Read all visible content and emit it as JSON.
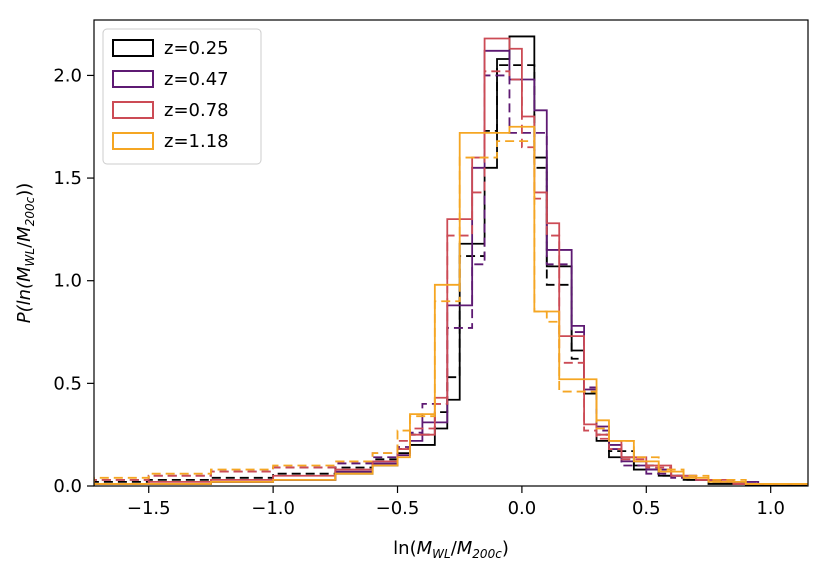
{
  "chart_data": {
    "type": "step-histogram",
    "title": "",
    "xlabel_parts": {
      "prefix": "ln(",
      "num": "M",
      "num_sub": "WL",
      "slash": "/",
      "den": "M",
      "den_sub": "200c",
      "suffix": ")"
    },
    "ylabel_parts": {
      "prefix": "P(ln(",
      "num": "M",
      "num_sub": "WL",
      "slash": "/",
      "den": "M",
      "den_sub": "200c",
      "suffix": "))"
    },
    "xlim": [
      -1.72,
      1.15
    ],
    "ylim": [
      0,
      2.27
    ],
    "xticks": [
      -1.5,
      -1.0,
      -0.5,
      0.0,
      0.5,
      1.0
    ],
    "xtick_labels": [
      "−1.5",
      "−1.0",
      "−0.5",
      "0.0",
      "0.5",
      "1.0"
    ],
    "yticks": [
      0.0,
      0.5,
      1.0,
      1.5,
      2.0
    ],
    "ytick_labels": [
      "0.0",
      "0.5",
      "1.0",
      "1.5",
      "2.0"
    ],
    "legend_position": "top-left",
    "series": [
      {
        "name": "z=0.25",
        "color": "#000000",
        "solid": {
          "edges": [
            -1.72,
            -1.5,
            -1.25,
            -1.0,
            -0.75,
            -0.6,
            -0.5,
            -0.45,
            -0.35,
            -0.3,
            -0.25,
            -0.15,
            -0.1,
            -0.05,
            0.05,
            0.1,
            0.2,
            0.25,
            0.3,
            0.35,
            0.45,
            0.55,
            0.65,
            0.75,
            0.9,
            1.15
          ],
          "heights": [
            0.01,
            0.01,
            0.02,
            0.03,
            0.06,
            0.1,
            0.16,
            0.2,
            0.28,
            0.42,
            1.18,
            1.55,
            2.08,
            2.19,
            1.6,
            1.07,
            0.66,
            0.45,
            0.22,
            0.14,
            0.08,
            0.05,
            0.03,
            0.01,
            0.005
          ]
        },
        "dashed": {
          "edges": [
            -1.72,
            -1.5,
            -1.25,
            -1.0,
            -0.75,
            -0.6,
            -0.5,
            -0.45,
            -0.35,
            -0.3,
            -0.25,
            -0.15,
            -0.1,
            -0.05,
            0.05,
            0.1,
            0.2,
            0.25,
            0.3,
            0.35,
            0.45,
            0.55,
            0.65,
            0.75,
            0.9,
            1.15
          ],
          "heights": [
            0.02,
            0.03,
            0.04,
            0.06,
            0.09,
            0.13,
            0.18,
            0.25,
            0.36,
            0.53,
            1.12,
            1.73,
            2.05,
            2.05,
            1.55,
            0.98,
            0.62,
            0.45,
            0.25,
            0.17,
            0.1,
            0.05,
            0.03,
            0.02,
            0.01
          ]
        }
      },
      {
        "name": "z=0.47",
        "color": "#5e1a73",
        "solid": {
          "edges": [
            -1.72,
            -1.5,
            -1.25,
            -1.0,
            -0.75,
            -0.6,
            -0.5,
            -0.45,
            -0.4,
            -0.3,
            -0.2,
            -0.15,
            -0.05,
            0.05,
            0.1,
            0.2,
            0.25,
            0.3,
            0.35,
            0.4,
            0.5,
            0.6,
            0.7,
            0.8,
            0.95,
            1.15
          ],
          "heights": [
            0.01,
            0.01,
            0.02,
            0.03,
            0.07,
            0.11,
            0.15,
            0.22,
            0.31,
            0.88,
            1.55,
            2.12,
            1.98,
            1.83,
            1.15,
            0.78,
            0.47,
            0.29,
            0.2,
            0.12,
            0.08,
            0.05,
            0.03,
            0.02,
            0.01
          ]
        },
        "dashed": {
          "edges": [
            -1.72,
            -1.5,
            -1.25,
            -1.0,
            -0.75,
            -0.6,
            -0.5,
            -0.45,
            -0.4,
            -0.3,
            -0.2,
            -0.15,
            -0.05,
            0.05,
            0.1,
            0.2,
            0.25,
            0.3,
            0.35,
            0.4,
            0.5,
            0.6,
            0.7,
            0.8,
            0.95,
            1.15
          ],
          "heights": [
            0.03,
            0.05,
            0.07,
            0.09,
            0.11,
            0.14,
            0.19,
            0.26,
            0.4,
            0.77,
            1.08,
            2.0,
            1.72,
            1.72,
            1.08,
            0.75,
            0.48,
            0.27,
            0.18,
            0.1,
            0.06,
            0.04,
            0.03,
            0.02,
            0.01
          ]
        }
      },
      {
        "name": "z=0.78",
        "color": "#cc4b55",
        "solid": {
          "edges": [
            -1.72,
            -1.5,
            -1.25,
            -1.0,
            -0.75,
            -0.6,
            -0.5,
            -0.45,
            -0.35,
            -0.3,
            -0.2,
            -0.15,
            -0.05,
            0.0,
            0.05,
            0.1,
            0.15,
            0.25,
            0.3,
            0.35,
            0.4,
            0.5,
            0.6,
            0.7,
            0.85,
            1.15
          ],
          "heights": [
            0.01,
            0.02,
            0.03,
            0.05,
            0.08,
            0.12,
            0.18,
            0.25,
            0.43,
            1.3,
            1.6,
            2.18,
            2.13,
            1.8,
            1.43,
            1.28,
            0.73,
            0.3,
            0.25,
            0.22,
            0.14,
            0.1,
            0.05,
            0.03,
            0.01
          ]
        },
        "dashed": {
          "edges": [
            -1.72,
            -1.5,
            -1.25,
            -1.0,
            -0.75,
            -0.6,
            -0.5,
            -0.45,
            -0.35,
            -0.3,
            -0.2,
            -0.15,
            -0.05,
            0.0,
            0.05,
            0.1,
            0.15,
            0.25,
            0.3,
            0.35,
            0.4,
            0.5,
            0.6,
            0.7,
            0.85,
            1.15
          ],
          "heights": [
            0.03,
            0.05,
            0.07,
            0.09,
            0.12,
            0.16,
            0.22,
            0.28,
            0.4,
            1.22,
            1.43,
            2.02,
            1.98,
            1.65,
            1.4,
            1.22,
            0.6,
            0.27,
            0.23,
            0.18,
            0.13,
            0.09,
            0.05,
            0.03,
            0.01
          ]
        }
      },
      {
        "name": "z=1.18",
        "color": "#f5a623",
        "solid": {
          "edges": [
            -1.72,
            -1.5,
            -1.25,
            -1.0,
            -0.75,
            -0.6,
            -0.5,
            -0.45,
            -0.35,
            -0.3,
            -0.25,
            -0.15,
            -0.1,
            -0.05,
            0.05,
            0.1,
            0.15,
            0.25,
            0.3,
            0.35,
            0.45,
            0.55,
            0.65,
            0.75,
            0.9,
            1.15
          ],
          "heights": [
            0.01,
            0.01,
            0.02,
            0.03,
            0.06,
            0.1,
            0.14,
            0.35,
            0.98,
            0.98,
            1.72,
            1.72,
            1.72,
            1.75,
            0.85,
            0.85,
            0.52,
            0.52,
            0.32,
            0.22,
            0.12,
            0.07,
            0.04,
            0.02,
            0.01
          ]
        },
        "dashed": {
          "edges": [
            -1.72,
            -1.5,
            -1.25,
            -1.0,
            -0.75,
            -0.6,
            -0.5,
            -0.45,
            -0.35,
            -0.3,
            -0.25,
            -0.15,
            -0.1,
            -0.05,
            0.05,
            0.1,
            0.15,
            0.25,
            0.3,
            0.35,
            0.45,
            0.55,
            0.65,
            0.75,
            0.9,
            1.15
          ],
          "heights": [
            0.04,
            0.06,
            0.08,
            0.1,
            0.12,
            0.16,
            0.27,
            0.34,
            0.9,
            0.9,
            1.6,
            1.6,
            1.68,
            1.68,
            0.85,
            0.8,
            0.46,
            0.46,
            0.28,
            0.22,
            0.14,
            0.08,
            0.05,
            0.03,
            0.01
          ]
        }
      }
    ]
  }
}
